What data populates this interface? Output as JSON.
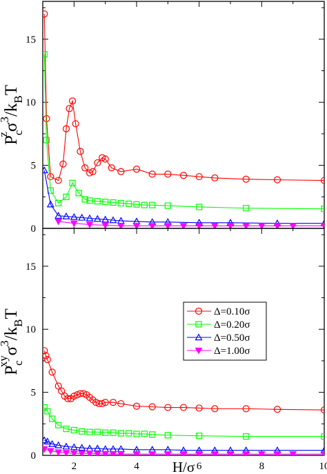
{
  "chart_data": [
    {
      "type": "line",
      "panel": "top",
      "ylabel": {
        "base": "P",
        "sub": "c",
        "sup": "z",
        "rest": "σ",
        "rest_sup": "3",
        "tail": "/k",
        "tail_sub": "B",
        "end": "T"
      },
      "xlabel": "",
      "xlim": [
        1,
        10
      ],
      "ylim": [
        0,
        18
      ],
      "xticks": [
        2,
        4,
        6,
        8,
        10
      ],
      "yticks": [
        0,
        5,
        10,
        15
      ],
      "legend": null,
      "series": [
        {
          "name": "Δ=0.10σ",
          "color": "#ff0000",
          "marker": "circle",
          "x": [
            1.05,
            1.12,
            1.25,
            1.5,
            1.65,
            1.75,
            1.85,
            1.95,
            2.05,
            2.2,
            2.35,
            2.5,
            2.6,
            2.75,
            2.9,
            3.0,
            3.2,
            3.5,
            4.0,
            4.5,
            5.0,
            5.5,
            6.0,
            6.5,
            7.5,
            8.5,
            10.0
          ],
          "y": [
            17.0,
            8.7,
            4.1,
            3.8,
            5.1,
            7.9,
            9.5,
            10.1,
            8.3,
            6.1,
            4.8,
            4.4,
            4.5,
            5.2,
            5.6,
            5.5,
            4.8,
            4.5,
            4.7,
            4.3,
            4.3,
            4.2,
            4.1,
            4.0,
            3.9,
            3.85,
            3.8
          ]
        },
        {
          "name": "Δ=0.20σ",
          "color": "#00ff00",
          "marker": "square",
          "x": [
            1.05,
            1.12,
            1.25,
            1.5,
            1.75,
            1.95,
            2.15,
            2.35,
            2.5,
            2.75,
            3.0,
            3.25,
            3.5,
            3.75,
            4.0,
            4.25,
            4.5,
            5.0,
            6.0,
            7.5,
            10.0
          ],
          "y": [
            13.8,
            7.0,
            3.0,
            2.0,
            2.5,
            3.6,
            2.8,
            2.3,
            2.2,
            2.15,
            2.1,
            2.05,
            2.0,
            1.95,
            1.9,
            1.85,
            1.85,
            1.8,
            1.7,
            1.6,
            1.55
          ]
        },
        {
          "name": "Δ=0.50σ",
          "color": "#0000ff",
          "marker": "triangle-up",
          "x": [
            1.05,
            1.25,
            1.5,
            1.75,
            2.0,
            2.25,
            2.5,
            2.75,
            3.0,
            3.25,
            3.5,
            4.0,
            4.5,
            5.0,
            6.0,
            7.0,
            8.5,
            10.0
          ],
          "y": [
            4.6,
            1.9,
            1.0,
            0.95,
            0.9,
            0.85,
            0.8,
            0.75,
            0.7,
            0.65,
            0.6,
            0.55,
            0.5,
            0.5,
            0.45,
            0.45,
            0.4,
            0.4
          ]
        },
        {
          "name": "Δ=1.00σ",
          "color": "#ff00ff",
          "marker": "triangle-down",
          "x": [
            1.5,
            2.0,
            2.5,
            3.0,
            3.5,
            4.0,
            4.5,
            5.0,
            5.5,
            6.0,
            6.5,
            7.0,
            7.5,
            8.0,
            8.5,
            9.0,
            10.0
          ],
          "y": [
            0.55,
            0.4,
            0.3,
            0.25,
            0.2,
            0.2,
            0.2,
            0.2,
            0.2,
            0.2,
            0.2,
            0.2,
            0.2,
            0.2,
            0.2,
            0.2,
            0.2
          ]
        }
      ]
    },
    {
      "type": "line",
      "panel": "bottom",
      "ylabel": {
        "base": "P",
        "sub": "c",
        "sup": "xy",
        "rest": "σ",
        "rest_sup": "3",
        "tail": "/k",
        "tail_sub": "B",
        "end": "T"
      },
      "xlabel": "H/σ",
      "xlim": [
        1,
        10
      ],
      "ylim": [
        0,
        18
      ],
      "xticks": [
        2,
        4,
        6,
        8,
        10
      ],
      "yticks": [
        0,
        5,
        10,
        15
      ],
      "legend": "right",
      "series": [
        {
          "name": "Δ=0.10σ",
          "color": "#ff0000",
          "marker": "circle",
          "x": [
            1.05,
            1.1,
            1.15,
            1.3,
            1.5,
            1.6,
            1.7,
            1.8,
            1.9,
            2.0,
            2.1,
            2.2,
            2.3,
            2.4,
            2.5,
            2.6,
            2.7,
            2.8,
            2.9,
            3.0,
            3.25,
            3.5,
            4.0,
            4.5,
            5.0,
            5.5,
            6.0,
            6.5,
            7.5,
            8.5,
            10.0
          ],
          "y": [
            8.3,
            7.9,
            7.6,
            6.6,
            5.5,
            5.1,
            4.7,
            4.5,
            4.5,
            4.7,
            4.8,
            4.9,
            4.9,
            4.8,
            4.6,
            4.4,
            4.2,
            4.1,
            4.1,
            4.2,
            4.2,
            4.1,
            3.9,
            3.85,
            3.8,
            3.8,
            3.75,
            3.7,
            3.7,
            3.65,
            3.6
          ]
        },
        {
          "name": "Δ=0.20σ",
          "color": "#00ff00",
          "marker": "square",
          "x": [
            1.05,
            1.15,
            1.3,
            1.5,
            1.75,
            2.0,
            2.25,
            2.5,
            2.75,
            3.0,
            3.25,
            3.5,
            3.75,
            4.0,
            4.25,
            4.5,
            5.0,
            6.0,
            7.5,
            10.0
          ],
          "y": [
            3.8,
            3.5,
            2.9,
            2.4,
            2.1,
            2.0,
            1.9,
            1.85,
            1.85,
            1.8,
            1.8,
            1.75,
            1.75,
            1.7,
            1.7,
            1.65,
            1.6,
            1.55,
            1.5,
            1.5
          ]
        },
        {
          "name": "Δ=0.50σ",
          "color": "#0000ff",
          "marker": "triangle-up",
          "x": [
            1.05,
            1.15,
            1.3,
            1.5,
            1.75,
            2.0,
            2.25,
            2.5,
            2.75,
            3.0,
            3.25,
            3.5,
            4.0,
            4.5,
            5.0,
            5.5,
            6.0,
            6.5,
            7.0,
            7.5,
            8.5,
            10.0
          ],
          "y": [
            1.2,
            1.1,
            0.9,
            0.8,
            0.7,
            0.65,
            0.6,
            0.55,
            0.55,
            0.5,
            0.5,
            0.5,
            0.45,
            0.45,
            0.45,
            0.4,
            0.4,
            0.4,
            0.4,
            0.4,
            0.4,
            0.4
          ]
        },
        {
          "name": "Δ=1.00σ",
          "color": "#ff00ff",
          "marker": "triangle-down",
          "x": [
            1.05,
            1.25,
            1.5,
            1.75,
            2.0,
            2.25,
            2.5,
            2.75,
            3.0,
            3.25,
            3.5,
            4.0,
            4.5,
            5.0,
            5.5,
            6.0,
            6.5,
            7.0,
            7.5,
            8.0,
            8.5,
            9.0,
            10.0
          ],
          "y": [
            0.5,
            0.35,
            0.25,
            0.2,
            0.15,
            0.15,
            0.15,
            0.12,
            0.12,
            0.1,
            0.1,
            0.1,
            0.1,
            0.1,
            0.1,
            0.1,
            0.1,
            0.1,
            0.1,
            0.1,
            0.1,
            0.1,
            0.1
          ]
        }
      ]
    }
  ]
}
